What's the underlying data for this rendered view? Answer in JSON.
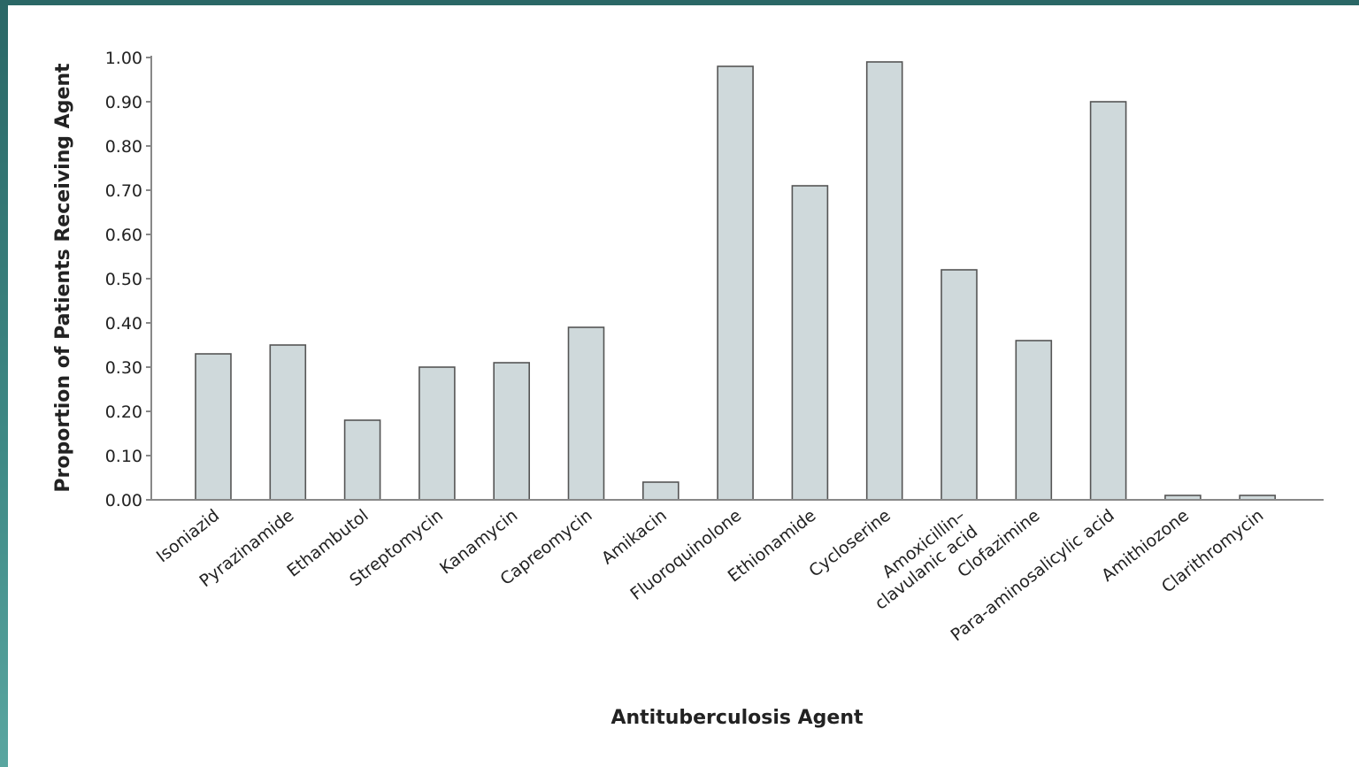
{
  "colors": {
    "frame": "#2d6e6c",
    "bar_fill": "#cfd9db",
    "bar_stroke": "#555555",
    "axis": "#888888"
  },
  "chart_data": {
    "type": "bar",
    "title": "",
    "xlabel": "Antituberculosis Agent",
    "ylabel": "Proportion of Patients Receiving Agent",
    "ylim": [
      0,
      1.0
    ],
    "yticks": [
      "0.00",
      "0.10",
      "0.20",
      "0.30",
      "0.40",
      "0.50",
      "0.60",
      "0.70",
      "0.80",
      "0.90",
      "1.00"
    ],
    "grid": false,
    "categories": [
      [
        "Isoniazid"
      ],
      [
        "Pyrazinamide"
      ],
      [
        "Ethambutol"
      ],
      [
        "Streptomycin"
      ],
      [
        "Kanamycin"
      ],
      [
        "Capreomycin"
      ],
      [
        "Amikacin"
      ],
      [
        "Fluoroquinolone"
      ],
      [
        "Ethionamide"
      ],
      [
        "Cycloserine"
      ],
      [
        "Amoxicillin–",
        "clavulanic acid"
      ],
      [
        "Clofazimine"
      ],
      [
        "Para-aminosalicylic acid"
      ],
      [
        "Amithiozone"
      ],
      [
        "Clarithromycin"
      ]
    ],
    "values": [
      0.33,
      0.35,
      0.18,
      0.3,
      0.31,
      0.39,
      0.04,
      0.98,
      0.71,
      0.99,
      0.52,
      0.36,
      0.9,
      0.01,
      0.01
    ]
  }
}
